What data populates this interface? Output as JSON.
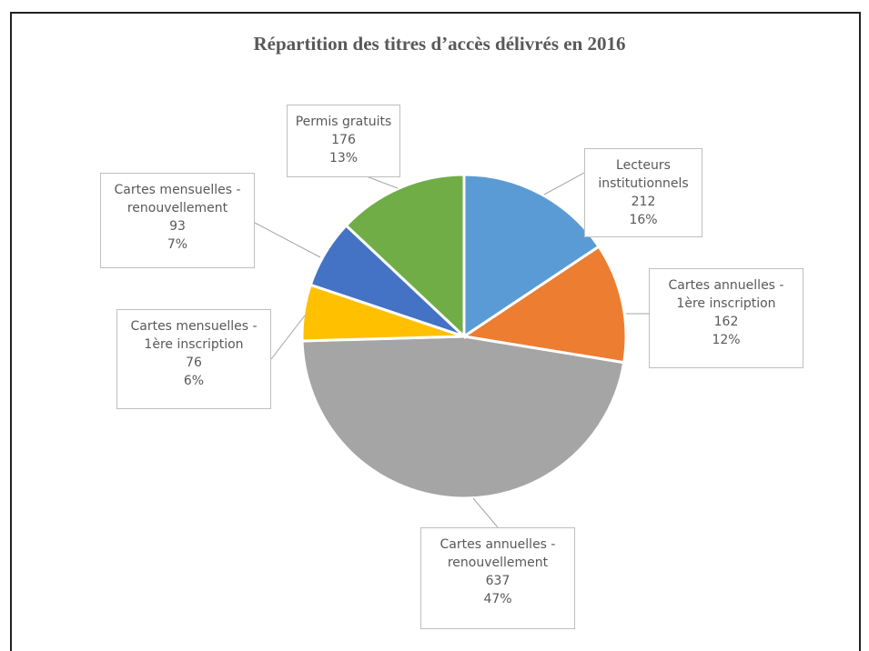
{
  "chart_data": {
    "type": "pie",
    "title": "Répartition des titres d’accès délivrés en 2016",
    "categories": [
      "Lecteurs institutionnels",
      "Cartes annuelles - 1ère inscription",
      "Cartes annuelles - renouvellement",
      "Cartes mensuelles - 1ère inscription",
      "Cartes mensuelles - renouvellement",
      "Permis gratuits"
    ],
    "values": [
      212,
      162,
      637,
      76,
      93,
      176
    ],
    "percent_labels": [
      "16%",
      "12%",
      "47%",
      "6%",
      "7%",
      "13%"
    ],
    "colors": [
      "#5b9bd5",
      "#ed7d31",
      "#a5a5a5",
      "#ffc000",
      "#4472c4",
      "#70ad47"
    ]
  }
}
